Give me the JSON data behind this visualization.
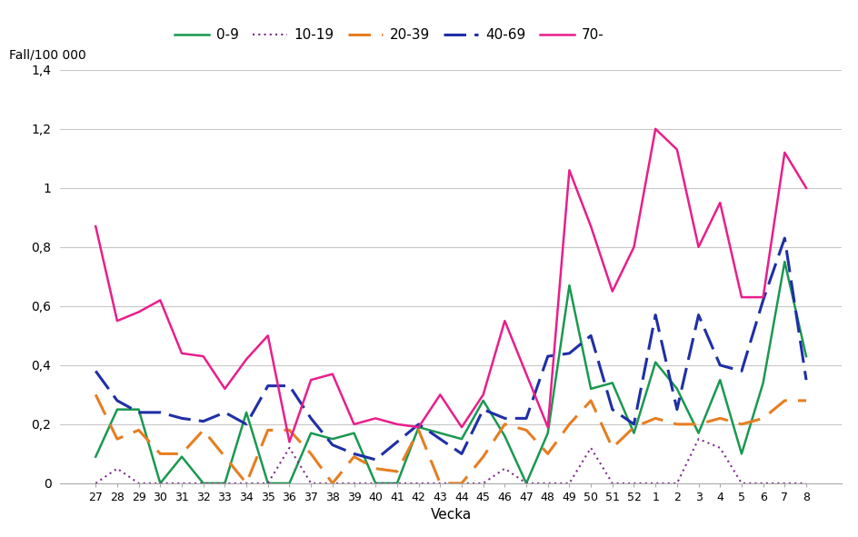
{
  "weeks": [
    27,
    28,
    29,
    30,
    31,
    32,
    33,
    34,
    35,
    36,
    37,
    38,
    39,
    40,
    41,
    42,
    43,
    44,
    45,
    46,
    47,
    48,
    49,
    50,
    51,
    52,
    1,
    2,
    3,
    4,
    5,
    6,
    7,
    8
  ],
  "series": {
    "0-9": [
      0.09,
      0.25,
      0.25,
      0.0,
      0.09,
      0.0,
      0.0,
      0.24,
      0.0,
      0.0,
      0.17,
      0.15,
      0.17,
      0.0,
      0.0,
      0.19,
      0.17,
      0.15,
      0.28,
      0.16,
      0.0,
      0.17,
      0.67,
      0.32,
      0.34,
      0.17,
      0.41,
      0.32,
      0.17,
      0.35,
      0.1,
      0.34,
      0.75,
      0.43
    ],
    "10-19": [
      0.0,
      0.05,
      0.0,
      0.0,
      0.0,
      0.0,
      0.0,
      0.0,
      0.0,
      0.12,
      0.0,
      0.0,
      0.0,
      0.0,
      0.0,
      0.0,
      0.0,
      0.0,
      0.0,
      0.05,
      0.0,
      0.0,
      0.0,
      0.12,
      0.0,
      0.0,
      0.0,
      0.0,
      0.15,
      0.12,
      0.0,
      0.0,
      0.0,
      0.0
    ],
    "20-39": [
      0.3,
      0.15,
      0.18,
      0.1,
      0.1,
      0.18,
      0.09,
      0.0,
      0.18,
      0.18,
      0.1,
      0.0,
      0.09,
      0.05,
      0.04,
      0.18,
      0.0,
      0.0,
      0.09,
      0.2,
      0.18,
      0.1,
      0.2,
      0.28,
      0.12,
      0.19,
      0.22,
      0.2,
      0.2,
      0.22,
      0.2,
      0.22,
      0.28,
      0.28
    ],
    "40-69": [
      0.38,
      0.28,
      0.24,
      0.24,
      0.22,
      0.21,
      0.24,
      0.2,
      0.33,
      0.33,
      0.22,
      0.13,
      0.1,
      0.08,
      0.14,
      0.2,
      0.15,
      0.1,
      0.25,
      0.22,
      0.22,
      0.43,
      0.44,
      0.5,
      0.25,
      0.2,
      0.57,
      0.25,
      0.57,
      0.4,
      0.38,
      0.62,
      0.83,
      0.35
    ],
    "70-": [
      0.87,
      0.55,
      0.58,
      0.62,
      0.44,
      0.43,
      0.32,
      0.42,
      0.5,
      0.14,
      0.35,
      0.37,
      0.2,
      0.22,
      0.2,
      0.19,
      0.3,
      0.19,
      0.3,
      0.55,
      0.37,
      0.19,
      1.06,
      0.87,
      0.65,
      0.8,
      1.2,
      1.13,
      0.8,
      0.95,
      0.63,
      0.63,
      1.12,
      1.0
    ]
  },
  "colors": {
    "0-9": "#1a9850",
    "10-19": "#7b2d8b",
    "20-39": "#e67e22",
    "40-69": "#1f2fa6",
    "70-": "#e91e8c"
  },
  "ylabel": "Fall/100 000",
  "xlabel": "Vecka",
  "ylim": [
    0,
    1.4
  ],
  "yticks": [
    0,
    0.2,
    0.4,
    0.6,
    0.8,
    1.0,
    1.2,
    1.4
  ],
  "ytick_labels": [
    "0",
    "0,2",
    "0,4",
    "0,6",
    "0,8",
    "1",
    "1,2",
    "1,4"
  ],
  "background_color": "#ffffff",
  "grid_color": "#c8c8c8"
}
